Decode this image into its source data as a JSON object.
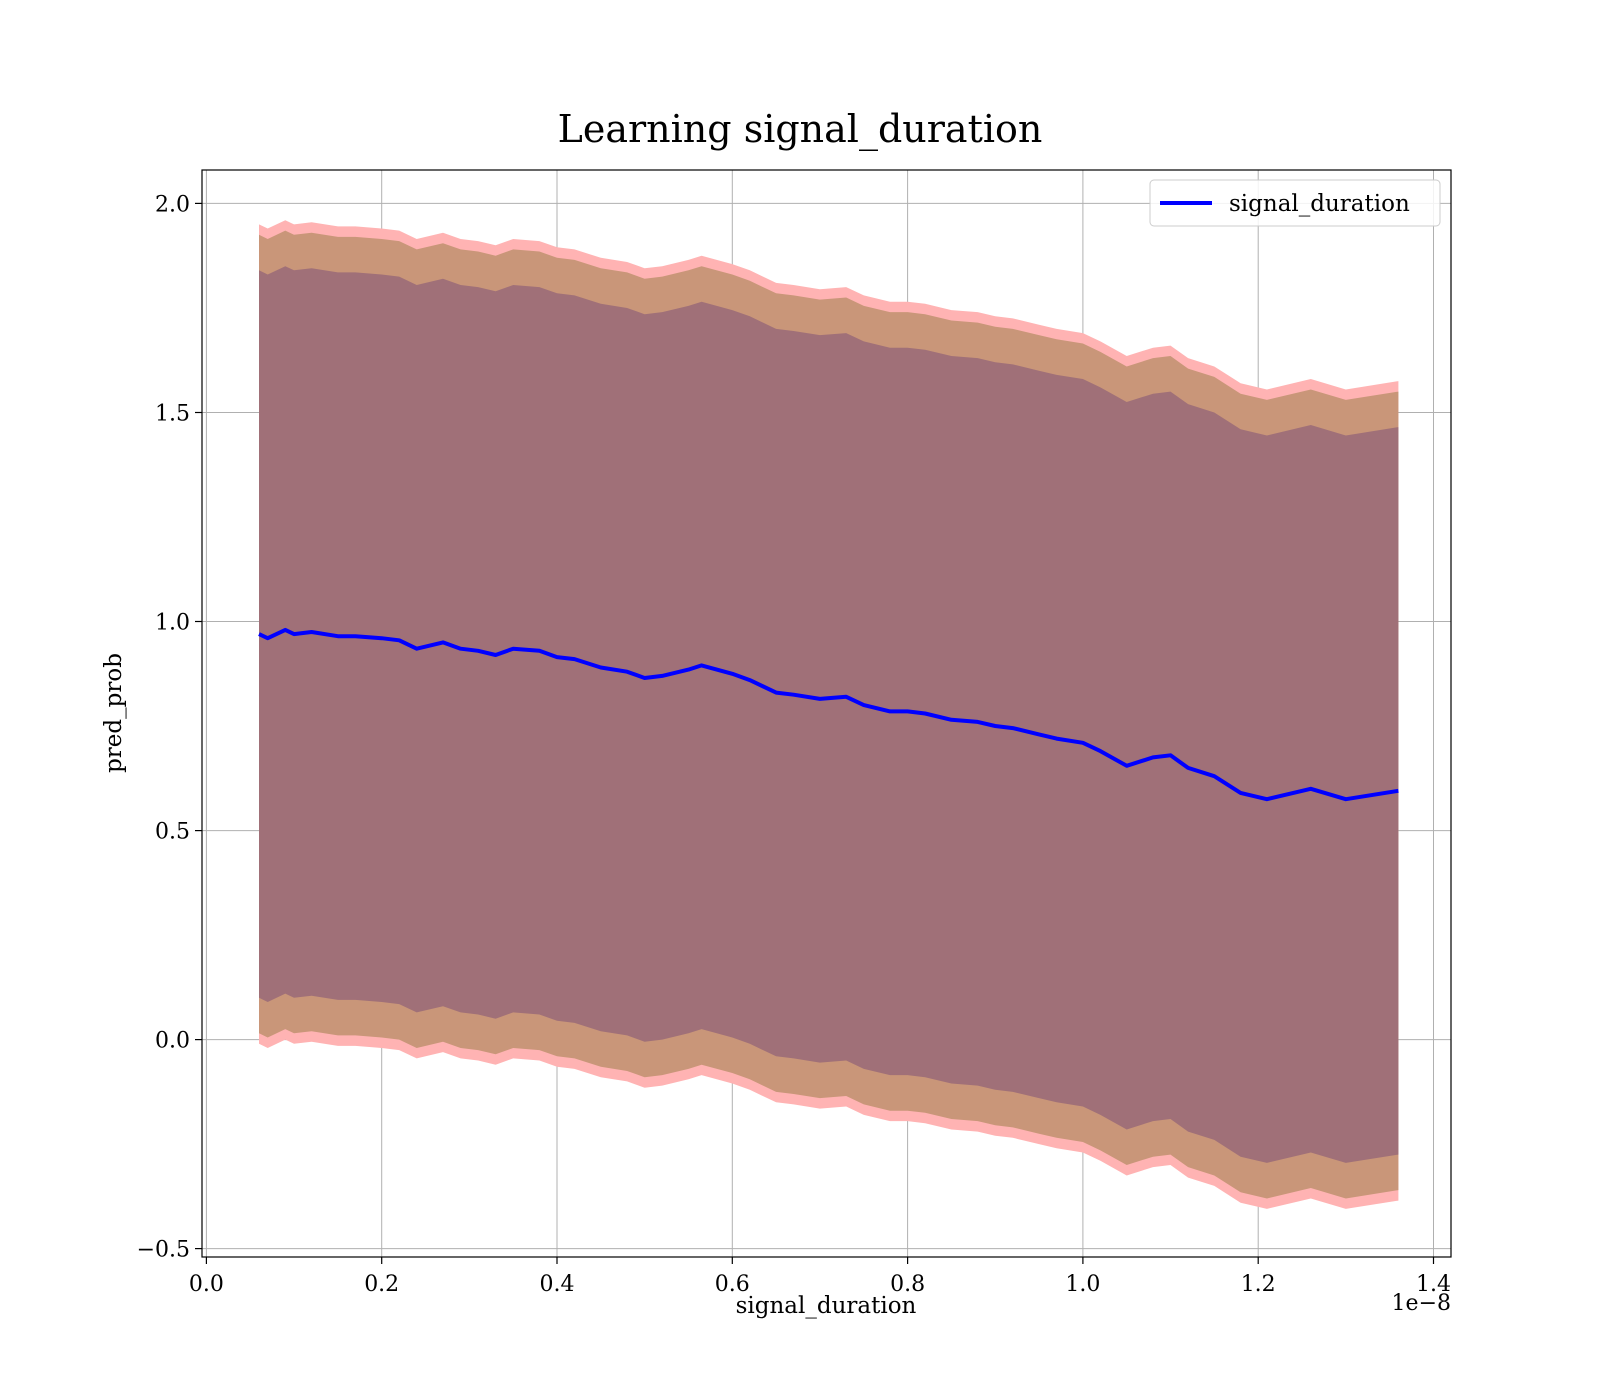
{
  "chart_data": {
    "type": "area",
    "title": "Learning signal_duration",
    "xlabel": "signal_duration",
    "ylabel": "pred_prob",
    "x_offset_label": "1e−8",
    "xlim": [
      -0.005,
      1.42
    ],
    "ylim": [
      -0.52,
      2.08
    ],
    "x_ticks": [
      0.0,
      0.2,
      0.4,
      0.6,
      0.8,
      1.0,
      1.2,
      1.4
    ],
    "x_tick_labels": [
      "0.0",
      "0.2",
      "0.4",
      "0.6",
      "0.8",
      "1.0",
      "1.2",
      "1.4"
    ],
    "y_ticks": [
      -0.5,
      0.0,
      0.5,
      1.0,
      1.5,
      2.0
    ],
    "y_tick_labels": [
      "−0.5",
      "0.0",
      "0.5",
      "1.0",
      "1.5",
      "2.0"
    ],
    "grid": true,
    "legend": {
      "placement": "upper-right",
      "entries": [
        "signal_duration"
      ]
    },
    "colors": {
      "line": "#0000ff",
      "band_outer": "#ffb3b3",
      "band_mid": "#c99679",
      "band_inner": "#a07078"
    },
    "series": [
      {
        "name": "signal_duration",
        "x": [
          0.06,
          0.07,
          0.09,
          0.1,
          0.12,
          0.15,
          0.17,
          0.2,
          0.22,
          0.24,
          0.27,
          0.29,
          0.31,
          0.33,
          0.35,
          0.38,
          0.4,
          0.42,
          0.45,
          0.48,
          0.5,
          0.52,
          0.55,
          0.565,
          0.6,
          0.62,
          0.65,
          0.67,
          0.7,
          0.73,
          0.75,
          0.78,
          0.8,
          0.82,
          0.85,
          0.88,
          0.9,
          0.92,
          0.95,
          0.97,
          1.0,
          1.02,
          1.05,
          1.08,
          1.1,
          1.12,
          1.15,
          1.18,
          1.21,
          1.26,
          1.3,
          1.36
        ],
        "y": [
          0.97,
          0.96,
          0.98,
          0.97,
          0.975,
          0.965,
          0.965,
          0.96,
          0.955,
          0.935,
          0.95,
          0.935,
          0.93,
          0.92,
          0.935,
          0.93,
          0.915,
          0.91,
          0.89,
          0.88,
          0.865,
          0.87,
          0.885,
          0.895,
          0.875,
          0.86,
          0.83,
          0.825,
          0.815,
          0.82,
          0.8,
          0.785,
          0.785,
          0.78,
          0.765,
          0.76,
          0.75,
          0.745,
          0.73,
          0.72,
          0.71,
          0.69,
          0.655,
          0.675,
          0.68,
          0.65,
          0.63,
          0.59,
          0.575,
          0.6,
          0.575,
          0.595
        ]
      }
    ],
    "bands": [
      {
        "name": "outer",
        "half_width": 0.98
      },
      {
        "name": "mid",
        "half_width": 0.955
      },
      {
        "name": "inner",
        "half_width": 0.87
      }
    ]
  }
}
